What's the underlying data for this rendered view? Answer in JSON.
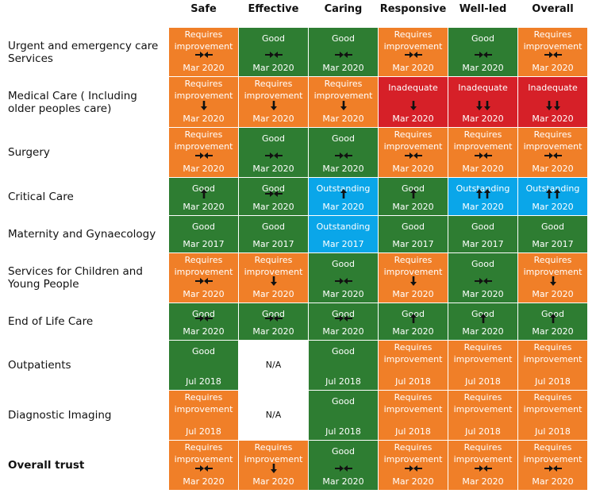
{
  "colors": {
    "good": "#2e7d32",
    "requires_improvement": "#f07f28",
    "inadequate": "#d62028",
    "outstanding": "#0aa6e9",
    "not_applicable": "#ffffff"
  },
  "columns": [
    "Safe",
    "Effective",
    "Caring",
    "Responsive",
    "Well-led",
    "Overall"
  ],
  "rows": [
    {
      "label": " Urgent and emergency care Services",
      "bold": false,
      "cells": [
        {
          "rating": "Requires improvement",
          "color": "requires_improvement",
          "trend": "same",
          "date": "Mar 2020"
        },
        {
          "rating": "Good",
          "color": "good",
          "trend": "same",
          "date": "Mar 2020"
        },
        {
          "rating": "Good",
          "color": "good",
          "trend": "same",
          "date": "Mar 2020"
        },
        {
          "rating": "Requires improvement",
          "color": "requires_improvement",
          "trend": "same",
          "date": "Mar 2020"
        },
        {
          "rating": "Good",
          "color": "good",
          "trend": "same",
          "date": "Mar 2020"
        },
        {
          "rating": "Requires improvement",
          "color": "requires_improvement",
          "trend": "same",
          "date": "Mar 2020"
        }
      ]
    },
    {
      "label": "Medical Care ( Including older peoples care)",
      "bold": false,
      "cells": [
        {
          "rating": "Requires improvement",
          "color": "requires_improvement",
          "trend": "down",
          "date": "Mar 2020"
        },
        {
          "rating": "Requires improvement",
          "color": "requires_improvement",
          "trend": "down",
          "date": "Mar 2020"
        },
        {
          "rating": "Requires improvement",
          "color": "requires_improvement",
          "trend": "down",
          "date": "Mar 2020"
        },
        {
          "rating": "Inadequate",
          "color": "inadequate",
          "trend": "down",
          "date": "Mar 2020"
        },
        {
          "rating": "Inadequate",
          "color": "inadequate",
          "trend": "down-down",
          "date": "Mar 2020"
        },
        {
          "rating": "Inadequate",
          "color": "inadequate",
          "trend": "down-down",
          "date": "Mar 2020"
        }
      ]
    },
    {
      "label": "Surgery",
      "bold": false,
      "cells": [
        {
          "rating": "Requires improvement",
          "color": "requires_improvement",
          "trend": "same",
          "date": "Mar 2020"
        },
        {
          "rating": "Good",
          "color": "good",
          "trend": "same",
          "date": "Mar 2020"
        },
        {
          "rating": "Good",
          "color": "good",
          "trend": "same",
          "date": "Mar 2020"
        },
        {
          "rating": "Requires improvement",
          "color": "requires_improvement",
          "trend": "same",
          "date": "Mar 2020"
        },
        {
          "rating": "Requires improvement",
          "color": "requires_improvement",
          "trend": "same",
          "date": "Mar 2020"
        },
        {
          "rating": "Requires improvement",
          "color": "requires_improvement",
          "trend": "same",
          "date": "Mar 2020"
        }
      ]
    },
    {
      "label": "Critical Care",
      "bold": false,
      "cells": [
        {
          "rating": "Good",
          "color": "good",
          "trend": "up",
          "date": "Mar 2020"
        },
        {
          "rating": "Good",
          "color": "good",
          "trend": "same",
          "date": "Mar 2020"
        },
        {
          "rating": "Outstanding",
          "color": "outstanding",
          "trend": "up",
          "date": "Mar 2020"
        },
        {
          "rating": "Good",
          "color": "good",
          "trend": "up",
          "date": "Mar 2020"
        },
        {
          "rating": "Outstanding",
          "color": "outstanding",
          "trend": "up-up",
          "date": "Mar 2020"
        },
        {
          "rating": "Outstanding",
          "color": "outstanding",
          "trend": "up-up",
          "date": "Mar 2020"
        }
      ]
    },
    {
      "label": "Maternity and Gynaecology",
      "bold": false,
      "cells": [
        {
          "rating": "Good",
          "color": "good",
          "trend": "none",
          "date": "Mar 2017"
        },
        {
          "rating": "Good",
          "color": "good",
          "trend": "none",
          "date": "Mar 2017"
        },
        {
          "rating": "Outstanding",
          "color": "outstanding",
          "trend": "none",
          "date": "Mar 2017"
        },
        {
          "rating": "Good",
          "color": "good",
          "trend": "none",
          "date": "Mar 2017"
        },
        {
          "rating": "Good",
          "color": "good",
          "trend": "none",
          "date": "Mar 2017"
        },
        {
          "rating": "Good",
          "color": "good",
          "trend": "none",
          "date": "Mar 2017"
        }
      ]
    },
    {
      "label": "Services for Children and Young People",
      "bold": false,
      "cells": [
        {
          "rating": "Requires improvement",
          "color": "requires_improvement",
          "trend": "same",
          "date": "Mar 2020"
        },
        {
          "rating": "Requires improvement",
          "color": "requires_improvement",
          "trend": "down",
          "date": "Mar 2020"
        },
        {
          "rating": "Good",
          "color": "good",
          "trend": "same",
          "date": "Mar 2020"
        },
        {
          "rating": "Requires improvement",
          "color": "requires_improvement",
          "trend": "down",
          "date": "Mar 2020"
        },
        {
          "rating": "Good",
          "color": "good",
          "trend": "same",
          "date": "Mar 2020"
        },
        {
          "rating": "Requires improvement",
          "color": "requires_improvement",
          "trend": "down",
          "date": "Mar 2020"
        }
      ]
    },
    {
      "label": "End of Life Care",
      "bold": false,
      "cells": [
        {
          "rating": "Good",
          "color": "good",
          "trend": "same",
          "date": "Mar 2020"
        },
        {
          "rating": "Good",
          "color": "good",
          "trend": "same",
          "date": "Mar 2020"
        },
        {
          "rating": "Good",
          "color": "good",
          "trend": "same",
          "date": "Mar 2020"
        },
        {
          "rating": "Good",
          "color": "good",
          "trend": "up",
          "date": "Mar 2020"
        },
        {
          "rating": "Good",
          "color": "good",
          "trend": "up",
          "date": "Mar 2020"
        },
        {
          "rating": "Good",
          "color": "good",
          "trend": "up",
          "date": "Mar 2020"
        }
      ]
    },
    {
      "label": "Outpatients",
      "bold": false,
      "cells": [
        {
          "rating": "Good",
          "color": "good",
          "trend": "none",
          "date": "Jul 2018"
        },
        {
          "rating": "N/A",
          "color": "not_applicable",
          "trend": "none",
          "date": ""
        },
        {
          "rating": "Good",
          "color": "good",
          "trend": "none",
          "date": "Jul 2018"
        },
        {
          "rating": "Requires improvement",
          "color": "requires_improvement",
          "trend": "none",
          "date": "Jul 2018"
        },
        {
          "rating": "Requires improvement",
          "color": "requires_improvement",
          "trend": "none",
          "date": "Jul 2018"
        },
        {
          "rating": "Requires improvement",
          "color": "requires_improvement",
          "trend": "none",
          "date": "Jul 2018"
        }
      ]
    },
    {
      "label": "Diagnostic Imaging",
      "bold": false,
      "cells": [
        {
          "rating": "Requires improvement",
          "color": "requires_improvement",
          "trend": "none",
          "date": "Jul 2018"
        },
        {
          "rating": "N/A",
          "color": "not_applicable",
          "trend": "none",
          "date": ""
        },
        {
          "rating": "Good",
          "color": "good",
          "trend": "none",
          "date": "Jul 2018"
        },
        {
          "rating": "Requires improvement",
          "color": "requires_improvement",
          "trend": "none",
          "date": "Jul 2018"
        },
        {
          "rating": "Requires improvement",
          "color": "requires_improvement",
          "trend": "none",
          "date": "Jul 2018"
        },
        {
          "rating": "Requires improvement",
          "color": "requires_improvement",
          "trend": "none",
          "date": "Jul 2018"
        }
      ]
    },
    {
      "label": "Overall trust",
      "bold": true,
      "cells": [
        {
          "rating": "Requires improvement",
          "color": "requires_improvement",
          "trend": "same",
          "date": "Mar 2020"
        },
        {
          "rating": "Requires improvement",
          "color": "requires_improvement",
          "trend": "down",
          "date": "Mar 2020"
        },
        {
          "rating": "Good",
          "color": "good",
          "trend": "same",
          "date": "Mar 2020"
        },
        {
          "rating": "Requires improvement",
          "color": "requires_improvement",
          "trend": "same",
          "date": "Mar 2020"
        },
        {
          "rating": "Requires improvement",
          "color": "requires_improvement",
          "trend": "same",
          "date": "Mar 2020"
        },
        {
          "rating": "Requires improvement",
          "color": "requires_improvement",
          "trend": "same",
          "date": "Mar 2020"
        }
      ]
    }
  ]
}
